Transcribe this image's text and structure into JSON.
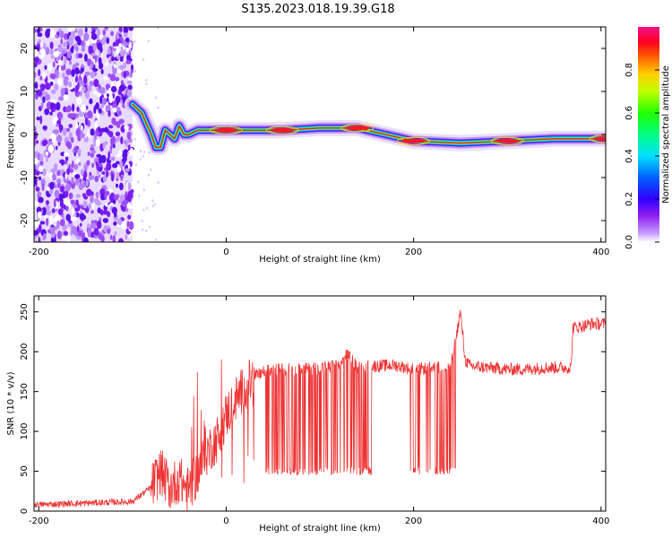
{
  "title": "S135.2023.018.19.39.G18",
  "chart_data": [
    {
      "type": "heatmap",
      "xlabel": "Height of straight line (km)",
      "ylabel": "Frequency (Hz)",
      "xlim": [
        -205,
        405
      ],
      "ylim": [
        -25,
        25
      ],
      "xticks": [
        -200,
        0,
        200,
        400
      ],
      "yticks": [
        -20,
        -10,
        0,
        10,
        20
      ],
      "colorbar": {
        "label": "Normalized spectral amplitude",
        "range": [
          0,
          1
        ],
        "ticks": [
          0.0,
          0.2,
          0.4,
          0.6,
          0.8
        ],
        "colors": [
          "#ffffff",
          "#a020f0",
          "#0000ff",
          "#00ffff",
          "#00ff00",
          "#ffff00",
          "#ff8000",
          "#ff0000",
          "#ff00a0"
        ]
      },
      "noise_region_km": [
        -205,
        -100
      ],
      "ridge": [
        {
          "x": -100,
          "y": 7
        },
        {
          "x": -90,
          "y": 5
        },
        {
          "x": -80,
          "y": 0
        },
        {
          "x": -75,
          "y": -3
        },
        {
          "x": -70,
          "y": -3
        },
        {
          "x": -65,
          "y": 1
        },
        {
          "x": -60,
          "y": 0
        },
        {
          "x": -55,
          "y": -1
        },
        {
          "x": -50,
          "y": 2
        },
        {
          "x": -45,
          "y": 0
        },
        {
          "x": -40,
          "y": 0
        },
        {
          "x": -30,
          "y": 1
        },
        {
          "x": 0,
          "y": 1
        },
        {
          "x": 40,
          "y": 1
        },
        {
          "x": 60,
          "y": 1
        },
        {
          "x": 100,
          "y": 1.5
        },
        {
          "x": 140,
          "y": 1.5
        },
        {
          "x": 170,
          "y": 0
        },
        {
          "x": 200,
          "y": -1.5
        },
        {
          "x": 250,
          "y": -2
        },
        {
          "x": 300,
          "y": -1.5
        },
        {
          "x": 350,
          "y": -1
        },
        {
          "x": 405,
          "y": -1
        }
      ]
    },
    {
      "type": "line",
      "xlabel": "Height of straight line (km)",
      "ylabel": "SNR (10 * v/v)",
      "xlim": [
        -205,
        405
      ],
      "ylim": [
        0,
        270
      ],
      "xticks": [
        -200,
        0,
        200,
        400
      ],
      "yticks": [
        0,
        50,
        100,
        150,
        200,
        250
      ],
      "color": "#ee3333",
      "series": [
        {
          "x": [
            -205,
            -150,
            -100,
            -80,
            -70,
            -60,
            -50,
            -40,
            -30,
            -20,
            -10,
            0,
            10,
            20,
            30,
            40,
            60,
            80,
            100,
            120,
            130,
            140,
            160,
            180,
            200,
            220,
            240,
            250,
            255,
            260,
            280,
            300,
            320,
            340,
            368,
            370,
            380,
            390,
            405
          ],
          "y": [
            8,
            10,
            12,
            30,
            50,
            30,
            40,
            25,
            50,
            75,
            90,
            120,
            140,
            155,
            168,
            175,
            178,
            178,
            180,
            182,
            198,
            180,
            182,
            183,
            178,
            180,
            182,
            250,
            190,
            182,
            180,
            178,
            178,
            180,
            180,
            230,
            232,
            235,
            235
          ]
        }
      ],
      "dropouts_km": [
        [
          40,
          110
        ],
        [
          110,
          155
        ],
        [
          195,
          245
        ]
      ]
    }
  ]
}
